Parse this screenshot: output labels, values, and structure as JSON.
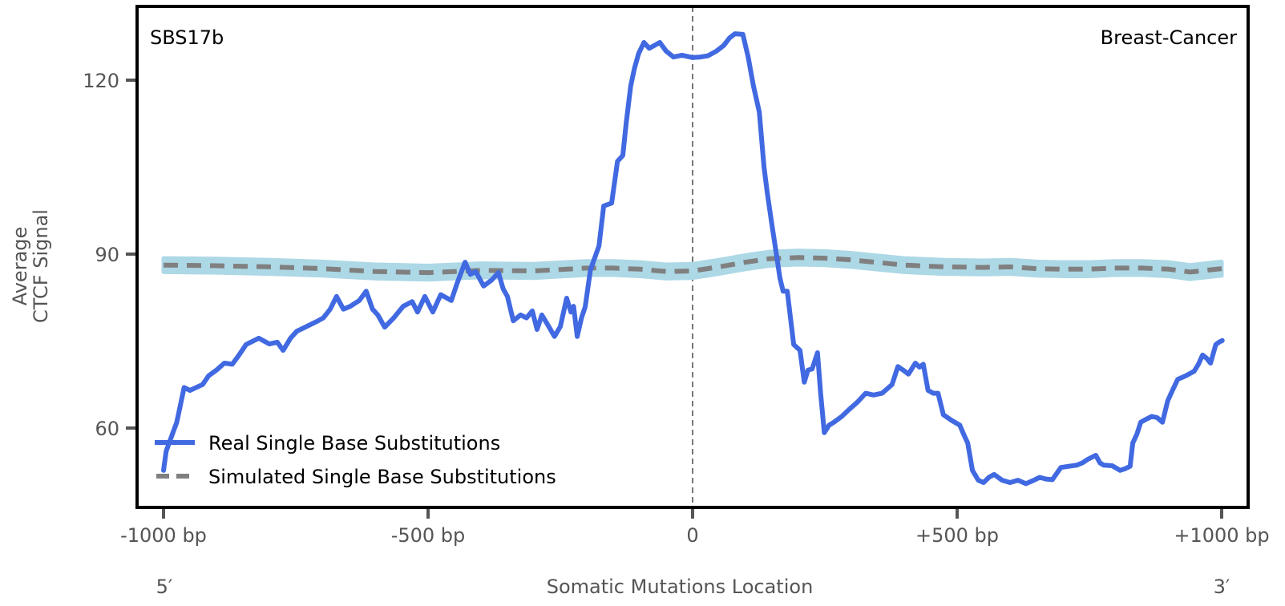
{
  "chart_data": {
    "type": "line",
    "title": "",
    "signature_label": "SBS17b",
    "tissue_label": "Breast-Cancer",
    "xlabel": "Somatic Mutations Location",
    "ylabel_lines": [
      "Average",
      "CTCF Signal"
    ],
    "xlim": [
      -1000,
      1000
    ],
    "ylim": [
      46,
      132
    ],
    "x_ticks": [
      {
        "value": -1000,
        "label": "-1000 bp"
      },
      {
        "value": -500,
        "label": "-500 bp"
      },
      {
        "value": 0,
        "label": "0"
      },
      {
        "value": 500,
        "label": "+500 bp"
      },
      {
        "value": 1000,
        "label": "+1000 bp"
      }
    ],
    "y_ticks": [
      {
        "value": 60,
        "label": "60"
      },
      {
        "value": 90,
        "label": "90"
      },
      {
        "value": 120,
        "label": "120"
      }
    ],
    "strand_labels": {
      "left": "5′",
      "right": "3′"
    },
    "center_line": {
      "x": 0,
      "style": "dashed",
      "color": "#777777"
    },
    "grid": false,
    "legend": {
      "position": "bottom-left",
      "entries": [
        {
          "label": "Real Single Base Substitutions",
          "style": "solid",
          "color": "#4169e1"
        },
        {
          "label": "Simulated Single Base Substitutions",
          "style": "dashed",
          "color": "#808080"
        }
      ]
    },
    "series": [
      {
        "name": "Real Single Base Substitutions",
        "color": "#4169e1",
        "style": "solid",
        "points": [
          [
            -1000,
            52.7
          ],
          [
            -995,
            56
          ],
          [
            -983,
            59
          ],
          [
            -975,
            61
          ],
          [
            -961,
            67
          ],
          [
            -950,
            66.5
          ],
          [
            -926,
            67.5
          ],
          [
            -915,
            69
          ],
          [
            -900,
            70
          ],
          [
            -885,
            71.2
          ],
          [
            -870,
            71
          ],
          [
            -858,
            72.5
          ],
          [
            -844,
            74.4
          ],
          [
            -820,
            75.5
          ],
          [
            -800,
            74.5
          ],
          [
            -785,
            74.8
          ],
          [
            -774,
            73.4
          ],
          [
            -760,
            75.5
          ],
          [
            -748,
            76.7
          ],
          [
            -730,
            77.5
          ],
          [
            -712,
            78.3
          ],
          [
            -698,
            79
          ],
          [
            -685,
            80.5
          ],
          [
            -673,
            82.7
          ],
          [
            -660,
            80.5
          ],
          [
            -647,
            81
          ],
          [
            -630,
            82
          ],
          [
            -617,
            83.6
          ],
          [
            -605,
            80.5
          ],
          [
            -595,
            79.5
          ],
          [
            -582,
            77.4
          ],
          [
            -565,
            79
          ],
          [
            -547,
            81
          ],
          [
            -530,
            81.8
          ],
          [
            -520,
            80
          ],
          [
            -506,
            82.7
          ],
          [
            -491,
            80
          ],
          [
            -476,
            83
          ],
          [
            -456,
            82
          ],
          [
            -445,
            85
          ],
          [
            -430,
            88.6
          ],
          [
            -420,
            86.5
          ],
          [
            -410,
            87
          ],
          [
            -395,
            84.5
          ],
          [
            -380,
            85.5
          ],
          [
            -367,
            86.8
          ],
          [
            -358,
            84
          ],
          [
            -350,
            82.7
          ],
          [
            -339,
            78.5
          ],
          [
            -325,
            79.5
          ],
          [
            -314,
            79
          ],
          [
            -303,
            80.2
          ],
          [
            -294,
            77
          ],
          [
            -285,
            79.5
          ],
          [
            -275,
            78
          ],
          [
            -261,
            75.8
          ],
          [
            -250,
            77.5
          ],
          [
            -238,
            82.4
          ],
          [
            -230,
            80
          ],
          [
            -225,
            81
          ],
          [
            -218,
            75.8
          ],
          [
            -210,
            79
          ],
          [
            -203,
            80.9
          ],
          [
            -193,
            87.3
          ],
          [
            -177,
            91.4
          ],
          [
            -168,
            98.3
          ],
          [
            -153,
            98.8
          ],
          [
            -142,
            106
          ],
          [
            -132,
            107
          ],
          [
            -125,
            113
          ],
          [
            -117,
            119
          ],
          [
            -110,
            122
          ],
          [
            -102,
            124.6
          ],
          [
            -92,
            126.5
          ],
          [
            -82,
            125.5
          ],
          [
            -72,
            126
          ],
          [
            -62,
            126.5
          ],
          [
            -50,
            125
          ],
          [
            -36,
            124
          ],
          [
            -20,
            124.3
          ],
          [
            0,
            123.9
          ],
          [
            15,
            124
          ],
          [
            29,
            124.2
          ],
          [
            45,
            125
          ],
          [
            59,
            126
          ],
          [
            70,
            127.3
          ],
          [
            80,
            128
          ],
          [
            95,
            127.9
          ],
          [
            105,
            124
          ],
          [
            115,
            119
          ],
          [
            126,
            114.5
          ],
          [
            135,
            105
          ],
          [
            141,
            100.6
          ],
          [
            150,
            95
          ],
          [
            156,
            91.4
          ],
          [
            165,
            85.9
          ],
          [
            171,
            83.6
          ],
          [
            179,
            83.6
          ],
          [
            185,
            79
          ],
          [
            191,
            74.4
          ],
          [
            203,
            73.4
          ],
          [
            211,
            67.9
          ],
          [
            218,
            70
          ],
          [
            226,
            70.2
          ],
          [
            236,
            73
          ],
          [
            242,
            66
          ],
          [
            249,
            59.2
          ],
          [
            258,
            60.5
          ],
          [
            267,
            61
          ],
          [
            282,
            62
          ],
          [
            297,
            63.3
          ],
          [
            312,
            64.5
          ],
          [
            327,
            66
          ],
          [
            342,
            65.7
          ],
          [
            358,
            66
          ],
          [
            377,
            67.5
          ],
          [
            388,
            70.6
          ],
          [
            398,
            70
          ],
          [
            408,
            69.3
          ],
          [
            421,
            71.2
          ],
          [
            429,
            70.5
          ],
          [
            436,
            71
          ],
          [
            445,
            66.5
          ],
          [
            455,
            66
          ],
          [
            464,
            66
          ],
          [
            474,
            62.3
          ],
          [
            490,
            61.3
          ],
          [
            505,
            60.5
          ],
          [
            512,
            59
          ],
          [
            520,
            57.4
          ],
          [
            529,
            52.7
          ],
          [
            540,
            51
          ],
          [
            550,
            50.6
          ],
          [
            560,
            51.5
          ],
          [
            570,
            52
          ],
          [
            585,
            51
          ],
          [
            600,
            50.6
          ],
          [
            615,
            51
          ],
          [
            630,
            50.4
          ],
          [
            645,
            51
          ],
          [
            656,
            51.5
          ],
          [
            668,
            51.2
          ],
          [
            680,
            51.1
          ],
          [
            696,
            53.2
          ],
          [
            711,
            53.4
          ],
          [
            726,
            53.6
          ],
          [
            737,
            54
          ],
          [
            747,
            54.6
          ],
          [
            762,
            55.3
          ],
          [
            770,
            54
          ],
          [
            777,
            53.6
          ],
          [
            793,
            53.5
          ],
          [
            808,
            52.7
          ],
          [
            818,
            53
          ],
          [
            827,
            53.4
          ],
          [
            832,
            57.4
          ],
          [
            840,
            59
          ],
          [
            847,
            61
          ],
          [
            857,
            61.5
          ],
          [
            868,
            62
          ],
          [
            878,
            61.8
          ],
          [
            888,
            61
          ],
          [
            898,
            64.7
          ],
          [
            907,
            66.5
          ],
          [
            917,
            68.4
          ],
          [
            932,
            69
          ],
          [
            948,
            69.8
          ],
          [
            956,
            71
          ],
          [
            964,
            72.6
          ],
          [
            972,
            72
          ],
          [
            979,
            71.2
          ],
          [
            989,
            74.4
          ],
          [
            995,
            74.8
          ],
          [
            1001,
            75.1
          ]
        ]
      },
      {
        "name": "Simulated Single Base Substitutions",
        "color": "#808080",
        "style": "dashed",
        "band_color": "#add8e6",
        "band_halfwidth": 1.2,
        "points": [
          [
            -1000,
            88.1
          ],
          [
            -900,
            88
          ],
          [
            -800,
            87.8
          ],
          [
            -700,
            87.5
          ],
          [
            -600,
            87
          ],
          [
            -500,
            86.8
          ],
          [
            -400,
            87.2
          ],
          [
            -300,
            87.1
          ],
          [
            -200,
            87.6
          ],
          [
            -150,
            87.6
          ],
          [
            -100,
            87.4
          ],
          [
            -50,
            87
          ],
          [
            0,
            87.1
          ],
          [
            50,
            87.8
          ],
          [
            100,
            88.6
          ],
          [
            145,
            89.2
          ],
          [
            200,
            89.4
          ],
          [
            250,
            89.3
          ],
          [
            300,
            89
          ],
          [
            355,
            88.5
          ],
          [
            400,
            88.1
          ],
          [
            475,
            87.8
          ],
          [
            550,
            87.7
          ],
          [
            600,
            87.8
          ],
          [
            650,
            87.5
          ],
          [
            700,
            87.4
          ],
          [
            750,
            87.4
          ],
          [
            800,
            87.6
          ],
          [
            850,
            87.6
          ],
          [
            900,
            87.4
          ],
          [
            940,
            86.9
          ],
          [
            1000,
            87.5
          ]
        ]
      }
    ]
  }
}
